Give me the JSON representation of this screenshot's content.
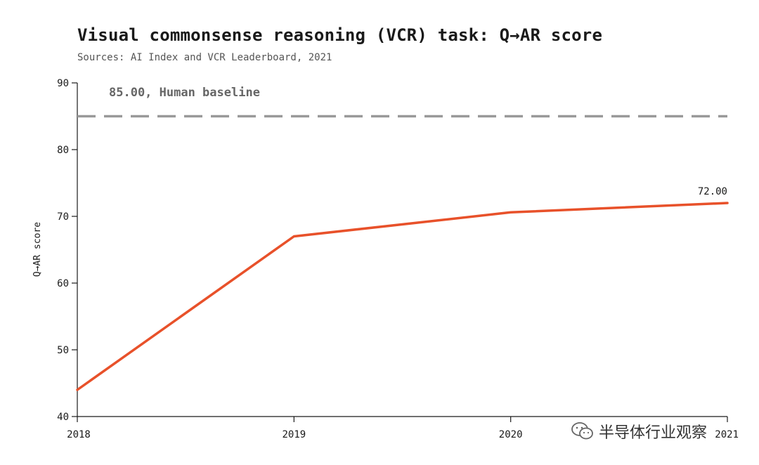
{
  "chart_data": {
    "type": "line",
    "title": "Visual commonsense reasoning (VCR) task: Q→AR score",
    "subtitle": "Sources: AI Index and VCR Leaderboard, 2021",
    "xlabel": "",
    "ylabel": "Q→AR score",
    "x": [
      "2018",
      "2019",
      "2020",
      "2021"
    ],
    "series": [
      {
        "values": [
          44.0,
          67.0,
          70.6,
          72.0
        ],
        "color": "#e8512a"
      }
    ],
    "ylim": [
      40,
      90
    ],
    "yticks": [
      40,
      50,
      60,
      70,
      80,
      90
    ],
    "reference_line": {
      "value": 85.0,
      "label": "85.00, Human baseline",
      "color": "#999999",
      "style": "dashed"
    },
    "data_labels": [
      {
        "x": "2021",
        "text": "72.00"
      }
    ],
    "grid": false,
    "legend": "none"
  },
  "watermark": {
    "text": "半导体行业观察",
    "icon": "wechat-icon"
  }
}
